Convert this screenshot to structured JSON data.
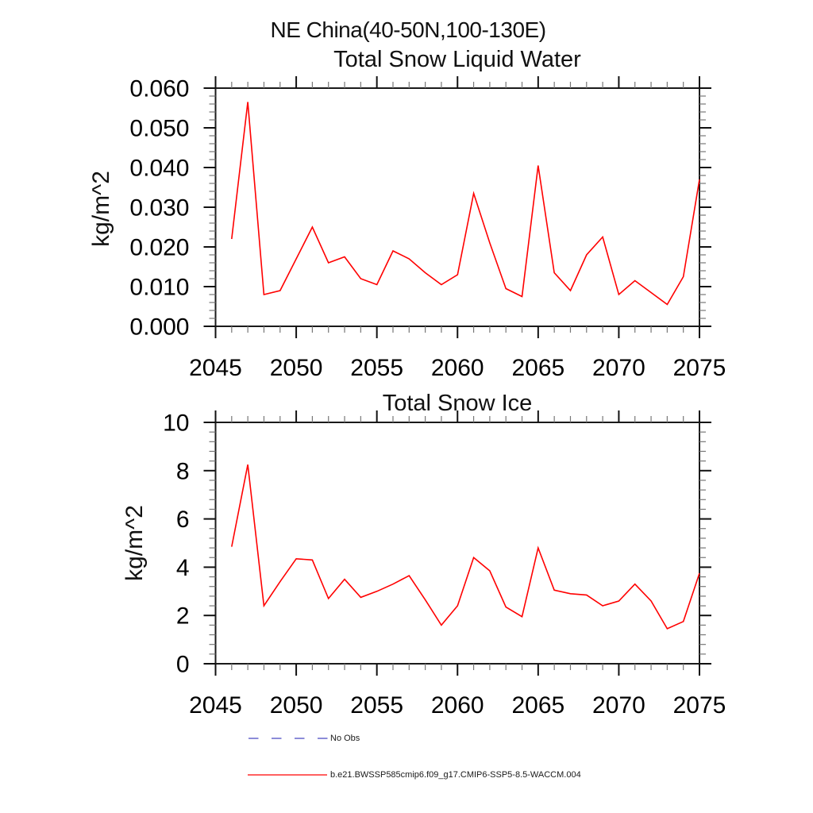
{
  "page": {
    "background": "#ffffff"
  },
  "header": {
    "title": "NE China(40-50N,100-130E)"
  },
  "chart_data": [
    {
      "type": "line",
      "title": "Total Snow Liquid Water",
      "ylabel": "kg/m^2",
      "xlabel": "",
      "xlim": [
        2045,
        2075
      ],
      "ylim": [
        0,
        0.06
      ],
      "grid": false,
      "x": [
        2046,
        2047,
        2048,
        2049,
        2050,
        2051,
        2052,
        2053,
        2054,
        2055,
        2056,
        2057,
        2058,
        2059,
        2060,
        2061,
        2062,
        2063,
        2064,
        2065,
        2066,
        2067,
        2068,
        2069,
        2070,
        2071,
        2072,
        2073,
        2074,
        2075
      ],
      "series": [
        {
          "name": "b.e21.BWSSP585cmip6.f09_g17.CMIP6-SSP5-8.5-WACCM.004",
          "color": "#ff0000",
          "values": [
            0.022,
            0.0565,
            0.008,
            0.009,
            0.017,
            0.025,
            0.016,
            0.0175,
            0.012,
            0.0105,
            0.019,
            0.017,
            0.0135,
            0.0105,
            0.013,
            0.0335,
            0.021,
            0.0095,
            0.0075,
            0.0405,
            0.0135,
            0.009,
            0.018,
            0.0225,
            0.008,
            0.0115,
            0.0085,
            0.0055,
            0.0125,
            0.037
          ]
        }
      ],
      "xticks": [
        2045,
        2050,
        2055,
        2060,
        2065,
        2070,
        2075
      ],
      "xtick_labels": [
        "2045",
        "2050",
        "2055",
        "2060",
        "2065",
        "2070",
        "2075"
      ],
      "x_minor_step": 1,
      "yticks": [
        0,
        0.01,
        0.02,
        0.03,
        0.04,
        0.05,
        0.06
      ],
      "ytick_labels": [
        "0.000",
        "0.010",
        "0.020",
        "0.030",
        "0.040",
        "0.050",
        "0.060"
      ],
      "y_minor_divisions": 5
    },
    {
      "type": "line",
      "title": "Total Snow Ice",
      "ylabel": "kg/m^2",
      "xlabel": "",
      "xlim": [
        2045,
        2075
      ],
      "ylim": [
        0,
        10
      ],
      "grid": false,
      "x": [
        2046,
        2047,
        2048,
        2049,
        2050,
        2051,
        2052,
        2053,
        2054,
        2055,
        2056,
        2057,
        2058,
        2059,
        2060,
        2061,
        2062,
        2063,
        2064,
        2065,
        2066,
        2067,
        2068,
        2069,
        2070,
        2071,
        2072,
        2073,
        2074,
        2075
      ],
      "series": [
        {
          "name": "b.e21.BWSSP585cmip6.f09_g17.CMIP6-SSP5-8.5-WACCM.004",
          "color": "#ff0000",
          "values": [
            4.85,
            8.25,
            2.4,
            3.4,
            4.35,
            4.3,
            2.7,
            3.5,
            2.75,
            3.0,
            3.3,
            3.65,
            2.65,
            1.6,
            2.4,
            4.4,
            3.85,
            2.35,
            1.95,
            4.8,
            3.05,
            2.9,
            2.85,
            2.4,
            2.6,
            3.3,
            2.6,
            1.45,
            1.75,
            3.75
          ]
        }
      ],
      "xticks": [
        2045,
        2050,
        2055,
        2060,
        2065,
        2070,
        2075
      ],
      "xtick_labels": [
        "2045",
        "2050",
        "2055",
        "2060",
        "2065",
        "2070",
        "2075"
      ],
      "x_minor_step": 1,
      "yticks": [
        0,
        2,
        4,
        6,
        8,
        10
      ],
      "ytick_labels": [
        "0",
        "2",
        "4",
        "6",
        "8",
        "10"
      ],
      "y_minor_divisions": 5
    }
  ],
  "legend": {
    "items": [
      {
        "label": "No Obs",
        "color": "#6666cc",
        "style": "dashed"
      },
      {
        "label": "b.e21.BWSSP585cmip6.f09_g17.CMIP6-SSP5-8.5-WACCM.004",
        "color": "#ff0000",
        "style": "solid"
      }
    ]
  }
}
